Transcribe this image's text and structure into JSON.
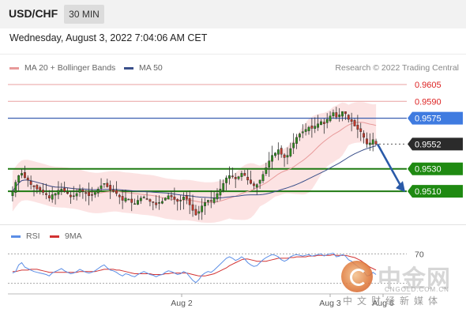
{
  "header": {
    "symbol": "USD/CHF",
    "interval": "30 MIN"
  },
  "datetime": "Wednesday, August 3, 2022 7:04:06 AM CET",
  "legend": {
    "bollinger": "MA 20 + Bollinger Bands",
    "ma50": "MA 50",
    "credit": "Research © 2022 Trading Central"
  },
  "rsi_legend": {
    "rsi": "RSI",
    "ma9": "9MA"
  },
  "watermark": {
    "cn": "中金网",
    "en": "CNGOLD.COM.CN",
    "sub": "中文财经新媒体"
  },
  "colors": {
    "resistance": "#e06060",
    "current": "#4a86d8",
    "support": "#2e8b1e",
    "price_label": "#2b2b2b",
    "bollinger_fill": "#fbd9d9",
    "ma20": "#e89a9a",
    "ma50": "#3a4f8a",
    "candle_up": "#2e8b1e",
    "candle_down": "#c0392b",
    "rsi": "#5b8ee6",
    "rsi_ma": "#d23232"
  },
  "chart_data": {
    "type": "candlestick",
    "title": "USD/CHF",
    "interval": "30 MIN",
    "ylim": [
      0.9482,
      0.9612
    ],
    "x_ticks": [
      "Aug 2",
      "Aug 3",
      "Aug 6"
    ],
    "levels": [
      {
        "label": "0.9605",
        "value": 0.9605,
        "kind": "resistance"
      },
      {
        "label": "0.9590",
        "value": 0.959,
        "kind": "resistance"
      },
      {
        "label": "0.9575",
        "value": 0.9575,
        "kind": "current"
      },
      {
        "label": "0.9552",
        "value": 0.9552,
        "kind": "price"
      },
      {
        "label": "0.9530",
        "value": 0.953,
        "kind": "support"
      },
      {
        "label": "0.9510",
        "value": 0.951,
        "kind": "support"
      }
    ],
    "projection": {
      "from": 0.9552,
      "to": 0.951,
      "direction": "down"
    },
    "closes": [
      0.951,
      0.9518,
      0.9524,
      0.9526,
      0.9522,
      0.952,
      0.9516,
      0.9514,
      0.9512,
      0.9511,
      0.9509,
      0.9507,
      0.9504,
      0.9507,
      0.9508,
      0.9511,
      0.9512,
      0.951,
      0.9508,
      0.9505,
      0.9506,
      0.9508,
      0.9512,
      0.951,
      0.9508,
      0.9506,
      0.9507,
      0.9509,
      0.9512,
      0.9515,
      0.9517,
      0.9514,
      0.9511,
      0.951,
      0.9508,
      0.9505,
      0.9502,
      0.9504,
      0.9503,
      0.95,
      0.9499,
      0.9502,
      0.9504,
      0.9505,
      0.9503,
      0.9501,
      0.95,
      0.9498,
      0.95,
      0.9501,
      0.9504,
      0.9506,
      0.9505,
      0.9503,
      0.9501,
      0.9502,
      0.9505,
      0.9503,
      0.9498,
      0.9493,
      0.9489,
      0.9492,
      0.9497,
      0.95,
      0.9502,
      0.9501,
      0.9504,
      0.9508,
      0.9512,
      0.9517,
      0.9522,
      0.9524,
      0.9523,
      0.9521,
      0.9523,
      0.9526,
      0.9524,
      0.952,
      0.9517,
      0.9515,
      0.9516,
      0.952,
      0.9525,
      0.9531,
      0.9537,
      0.9542,
      0.9544,
      0.9547,
      0.9543,
      0.954,
      0.9542,
      0.9548,
      0.9553,
      0.9558,
      0.9561,
      0.9563,
      0.9565,
      0.9567,
      0.9566,
      0.9568,
      0.957,
      0.9572,
      0.957,
      0.9574,
      0.9577,
      0.958,
      0.9576,
      0.9578,
      0.9581,
      0.9579,
      0.9574,
      0.9572,
      0.9568,
      0.9565,
      0.9563,
      0.9558,
      0.9552,
      0.9553,
      0.9556,
      0.9552
    ],
    "rsi": {
      "ylim": [
        20,
        80
      ],
      "levels": [
        70,
        30
      ],
      "level_labels": [
        "70"
      ],
      "values": [
        44,
        46,
        55,
        58,
        52,
        50,
        48,
        46,
        45,
        44,
        43,
        42,
        40,
        44,
        46,
        48,
        50,
        47,
        45,
        43,
        44,
        46,
        49,
        47,
        45,
        44,
        45,
        47,
        50,
        53,
        55,
        51,
        48,
        47,
        45,
        42,
        40,
        43,
        42,
        40,
        39,
        42,
        44,
        46,
        44,
        42,
        41,
        39,
        41,
        42,
        45,
        47,
        46,
        44,
        42,
        43,
        46,
        44,
        39,
        34,
        31,
        35,
        41,
        44,
        46,
        45,
        48,
        52,
        56,
        60,
        64,
        66,
        64,
        61,
        63,
        66,
        63,
        58,
        55,
        53,
        54,
        58,
        62,
        65,
        67,
        69,
        68,
        66,
        62,
        60,
        62,
        66,
        68,
        69,
        68,
        67,
        68,
        69,
        67,
        68,
        69,
        70,
        67,
        69,
        70,
        71,
        66,
        67,
        69,
        67,
        62,
        60,
        56,
        53,
        50,
        46,
        40,
        41,
        45,
        42
      ],
      "ma9": [
        46,
        46,
        47,
        48,
        48,
        48,
        49,
        49,
        49,
        48,
        47,
        46,
        45,
        45,
        45,
        45,
        45,
        45,
        45,
        45,
        45,
        45,
        46,
        46,
        46,
        46,
        46,
        46,
        47,
        48,
        49,
        49,
        49,
        49,
        48,
        48,
        47,
        46,
        45,
        44,
        43,
        43,
        43,
        43,
        43,
        43,
        42,
        42,
        42,
        42,
        43,
        43,
        44,
        44,
        44,
        44,
        44,
        44,
        43,
        42,
        41,
        40,
        40,
        40,
        41,
        42,
        43,
        45,
        47,
        49,
        51,
        54,
        56,
        58,
        60,
        62,
        63,
        63,
        62,
        61,
        60,
        60,
        60,
        60,
        61,
        62,
        63,
        64,
        64,
        64,
        64,
        65,
        65,
        66,
        66,
        66,
        66,
        67,
        67,
        67,
        68,
        68,
        68,
        68,
        68,
        69,
        68,
        68,
        68,
        68,
        67,
        66,
        65,
        63,
        61,
        58,
        55,
        52,
        50,
        48
      ]
    }
  }
}
